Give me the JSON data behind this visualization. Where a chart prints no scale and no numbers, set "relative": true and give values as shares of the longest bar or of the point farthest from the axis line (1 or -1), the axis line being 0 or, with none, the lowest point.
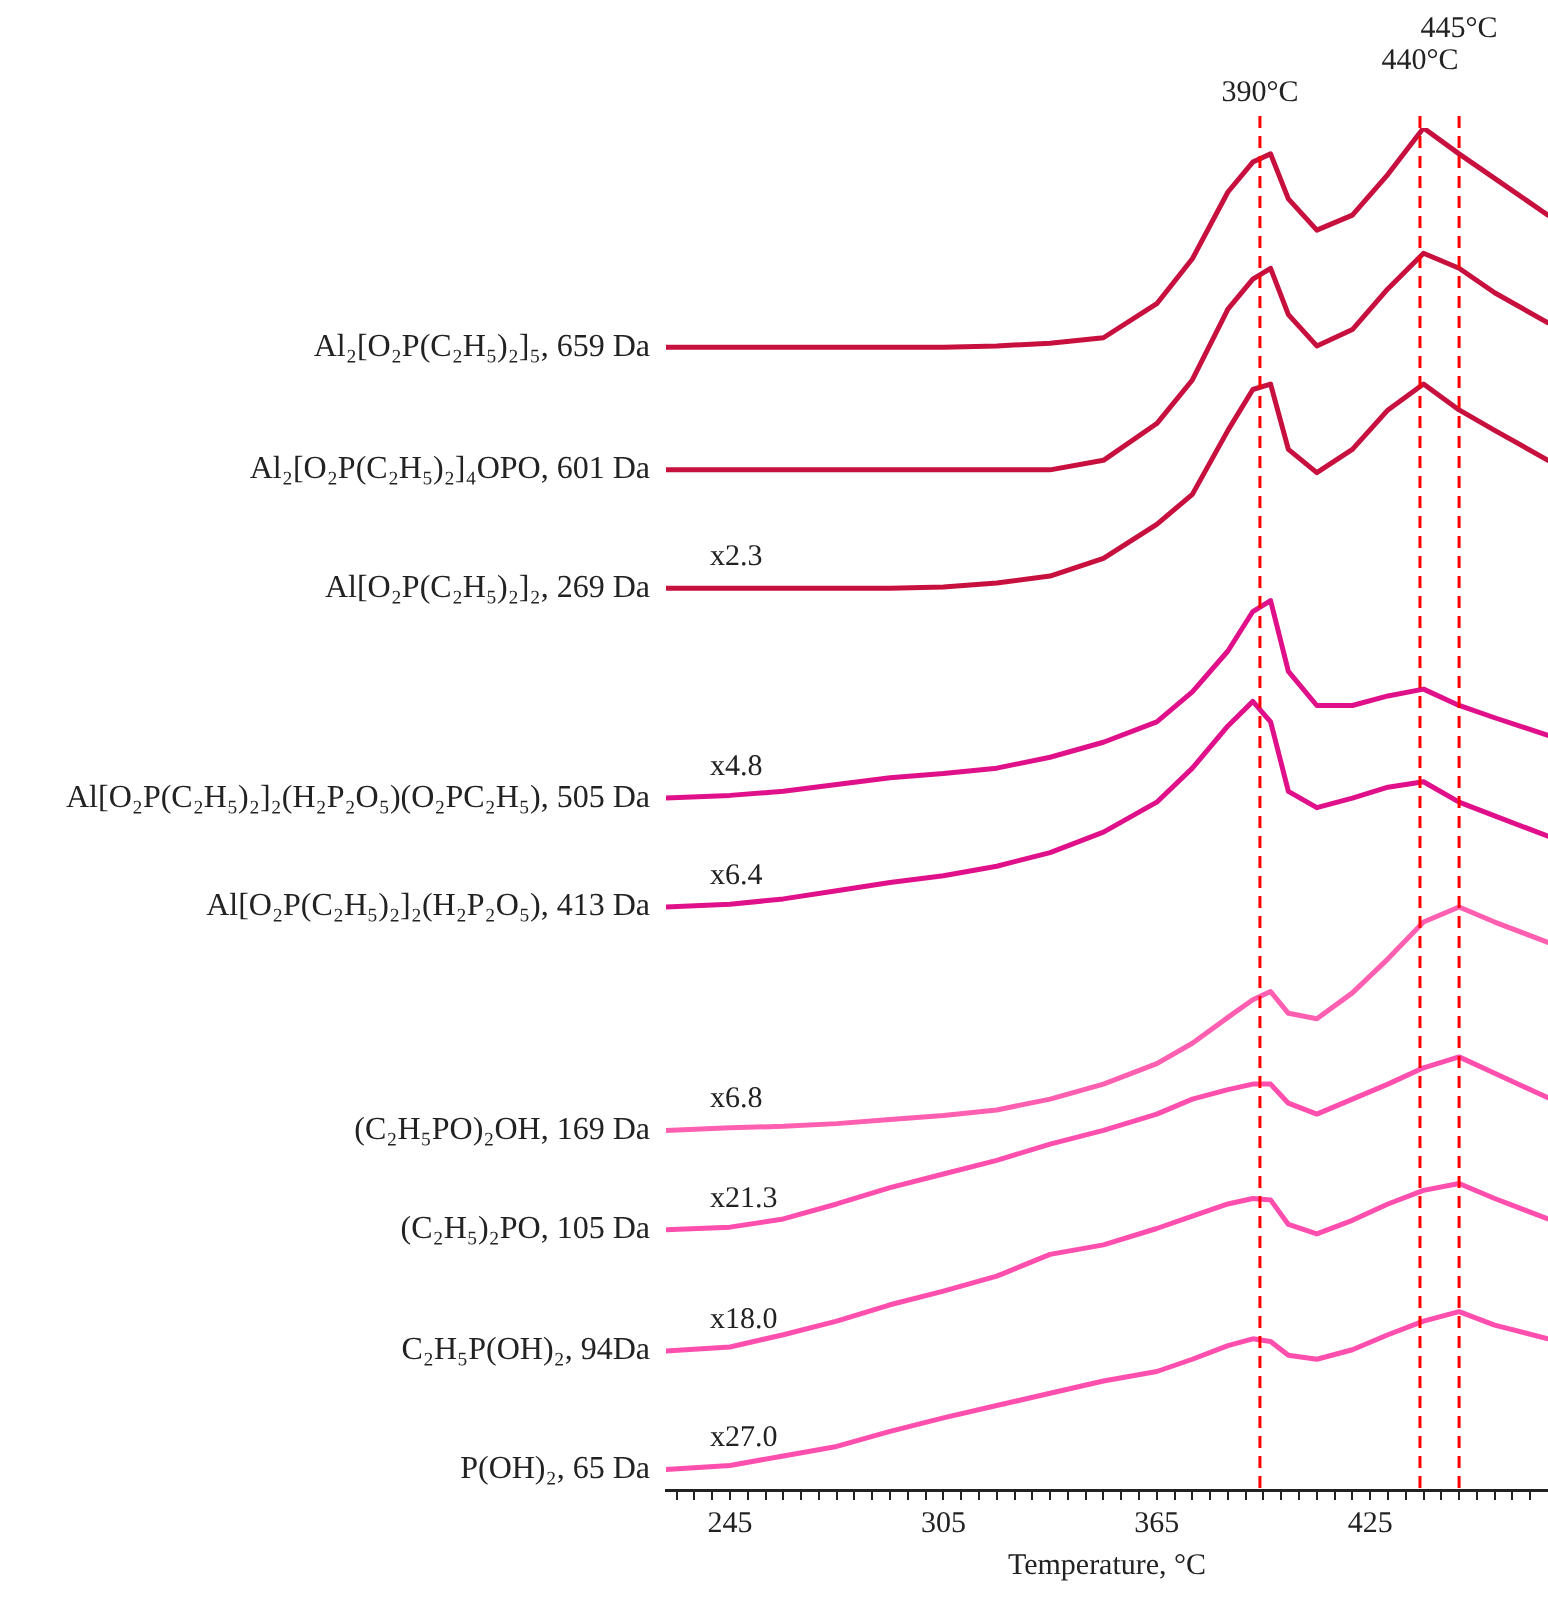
{
  "chart_data": {
    "type": "line",
    "relative": true,
    "xlabel": "Temperature, °C",
    "legend": false,
    "marker": "none",
    "line_style": "solid",
    "x": [
      227,
      245,
      260,
      275,
      290,
      305,
      320,
      335,
      350,
      365,
      375,
      385,
      392,
      397,
      402,
      410,
      420,
      430,
      440,
      450,
      460,
      475
    ],
    "xlim": [
      227,
      475
    ],
    "xticks": [
      {
        "value": 230,
        "label": null
      },
      {
        "value": 235,
        "label": null
      },
      {
        "value": 240,
        "label": null
      },
      245,
      {
        "value": 250,
        "label": null
      },
      {
        "value": 255,
        "label": null
      },
      {
        "value": 260,
        "label": null
      },
      {
        "value": 265,
        "label": null
      },
      {
        "value": 270,
        "label": null
      },
      {
        "value": 275,
        "label": null
      },
      {
        "value": 280,
        "label": null
      },
      {
        "value": 285,
        "label": null
      },
      {
        "value": 290,
        "label": null
      },
      {
        "value": 295,
        "label": null
      },
      {
        "value": 300,
        "label": null
      },
      305,
      {
        "value": 310,
        "label": null
      },
      {
        "value": 315,
        "label": null
      },
      {
        "value": 320,
        "label": null
      },
      {
        "value": 325,
        "label": null
      },
      {
        "value": 330,
        "label": null
      },
      {
        "value": 335,
        "label": null
      },
      {
        "value": 340,
        "label": null
      },
      {
        "value": 345,
        "label": null
      },
      {
        "value": 350,
        "label": null
      },
      {
        "value": 355,
        "label": null
      },
      {
        "value": 360,
        "label": null
      },
      365,
      {
        "value": 370,
        "label": null
      },
      {
        "value": 375,
        "label": null
      },
      {
        "value": 380,
        "label": null
      },
      {
        "value": 385,
        "label": null
      },
      {
        "value": 390,
        "label": null
      },
      {
        "value": 395,
        "label": null
      },
      {
        "value": 400,
        "label": null
      },
      {
        "value": 405,
        "label": null
      },
      {
        "value": 410,
        "label": null
      },
      {
        "value": 415,
        "label": null
      },
      {
        "value": 420,
        "label": null
      },
      425,
      {
        "value": 430,
        "label": null
      },
      {
        "value": 435,
        "label": null
      },
      {
        "value": 440,
        "label": null
      },
      {
        "value": 445,
        "label": null
      },
      {
        "value": 450,
        "label": null
      },
      {
        "value": 455,
        "label": null
      },
      {
        "value": 460,
        "label": null
      },
      {
        "value": 465,
        "label": null
      },
      {
        "value": 470,
        "label": null
      }
    ],
    "series": [
      {
        "name": "Al₂[O₂P(C₂H₅)₂]₅, 659 Da",
        "color": "#c8103f",
        "values": [
          0.839,
          0.839,
          0.839,
          0.839,
          0.839,
          0.839,
          0.84,
          0.842,
          0.846,
          0.871,
          0.904,
          0.953,
          0.975,
          0.981,
          0.948,
          0.925,
          0.936,
          0.966,
          1,
          0.981,
          0.963,
          0.936
        ]
      },
      {
        "name": "Al₂[O₂P(C₂H₅)₂]₄OPO, 601 Da",
        "color": "#c8103f",
        "values": [
          0.749,
          0.749,
          0.749,
          0.749,
          0.749,
          0.749,
          0.749,
          0.749,
          0.756,
          0.783,
          0.815,
          0.867,
          0.889,
          0.897,
          0.863,
          0.84,
          0.852,
          0.882,
          0.908,
          0.897,
          0.879,
          0.857
        ]
      },
      {
        "name": "Al[O₂P(C₂H₅)₂]₂, 269 Da",
        "color": "#c8103f",
        "values": [
          0.662,
          0.662,
          0.662,
          0.662,
          0.662,
          0.663,
          0.666,
          0.671,
          0.684,
          0.709,
          0.731,
          0.778,
          0.808,
          0.812,
          0.764,
          0.747,
          0.764,
          0.793,
          0.812,
          0.793,
          0.778,
          0.756
        ]
      },
      {
        "name": "Al[O₂P(C₂H₅)₂]₂(H₂P₂O₅)(O₂PC₂H₅), 505 Da",
        "color": "#e0108a",
        "values": [
          0.508,
          0.51,
          0.513,
          0.518,
          0.523,
          0.526,
          0.53,
          0.538,
          0.549,
          0.564,
          0.586,
          0.616,
          0.645,
          0.653,
          0.601,
          0.576,
          0.576,
          0.583,
          0.588,
          0.576,
          0.567,
          0.554
        ]
      },
      {
        "name": "Al[O₂P(C₂H₅)₂]₂(H₂P₂O₅), 413 Da",
        "color": "#e0108a",
        "values": [
          0.428,
          0.43,
          0.434,
          0.44,
          0.446,
          0.451,
          0.458,
          0.468,
          0.483,
          0.505,
          0.53,
          0.561,
          0.579,
          0.564,
          0.513,
          0.501,
          0.508,
          0.516,
          0.52,
          0.505,
          0.495,
          0.48
        ]
      },
      {
        "name": "(C₂H₅PO)₂OH, 169 Da",
        "color": "#ff5fb0",
        "values": [
          0.264,
          0.266,
          0.267,
          0.269,
          0.272,
          0.275,
          0.279,
          0.287,
          0.298,
          0.313,
          0.328,
          0.347,
          0.36,
          0.366,
          0.35,
          0.346,
          0.365,
          0.39,
          0.417,
          0.428,
          0.417,
          0.402
        ]
      },
      {
        "name": "(C₂H₅)₂PO, 105 Da",
        "color": "#ff4fae",
        "values": [
          0.191,
          0.193,
          0.199,
          0.21,
          0.222,
          0.232,
          0.242,
          0.254,
          0.264,
          0.276,
          0.287,
          0.294,
          0.298,
          0.298,
          0.284,
          0.276,
          0.287,
          0.298,
          0.31,
          0.318,
          0.306,
          0.288
        ]
      },
      {
        "name": "C₂H₅P(OH)₂, 94Da",
        "color": "#ff4fae",
        "values": [
          0.102,
          0.105,
          0.114,
          0.124,
          0.136,
          0.146,
          0.157,
          0.173,
          0.18,
          0.192,
          0.201,
          0.21,
          0.214,
          0.213,
          0.195,
          0.188,
          0.198,
          0.21,
          0.22,
          0.225,
          0.214,
          0.199
        ]
      },
      {
        "name": "P(OH)₂, 65 Da",
        "color": "#ff4fae",
        "values": [
          0.015,
          0.018,
          0.025,
          0.032,
          0.043,
          0.053,
          0.062,
          0.071,
          0.08,
          0.087,
          0.096,
          0.106,
          0.111,
          0.109,
          0.099,
          0.096,
          0.103,
          0.114,
          0.124,
          0.131,
          0.121,
          0.111
        ]
      }
    ],
    "ref_lines": [
      {
        "axis": "x",
        "value": 394,
        "label": "390°C",
        "color": "#ff0000",
        "line_style": "dashed"
      },
      {
        "axis": "x",
        "value": 439,
        "label": "440°C",
        "color": "#ff0000",
        "line_style": "dashed"
      },
      {
        "axis": "x",
        "value": 450,
        "label": "445°C",
        "color": "#ff0000",
        "line_style": "dashed"
      }
    ],
    "annotations": [
      "x2.3",
      "x4.8",
      "x6.4",
      "x6.8",
      "x21.3",
      "x18.0",
      "x27.0"
    ]
  }
}
